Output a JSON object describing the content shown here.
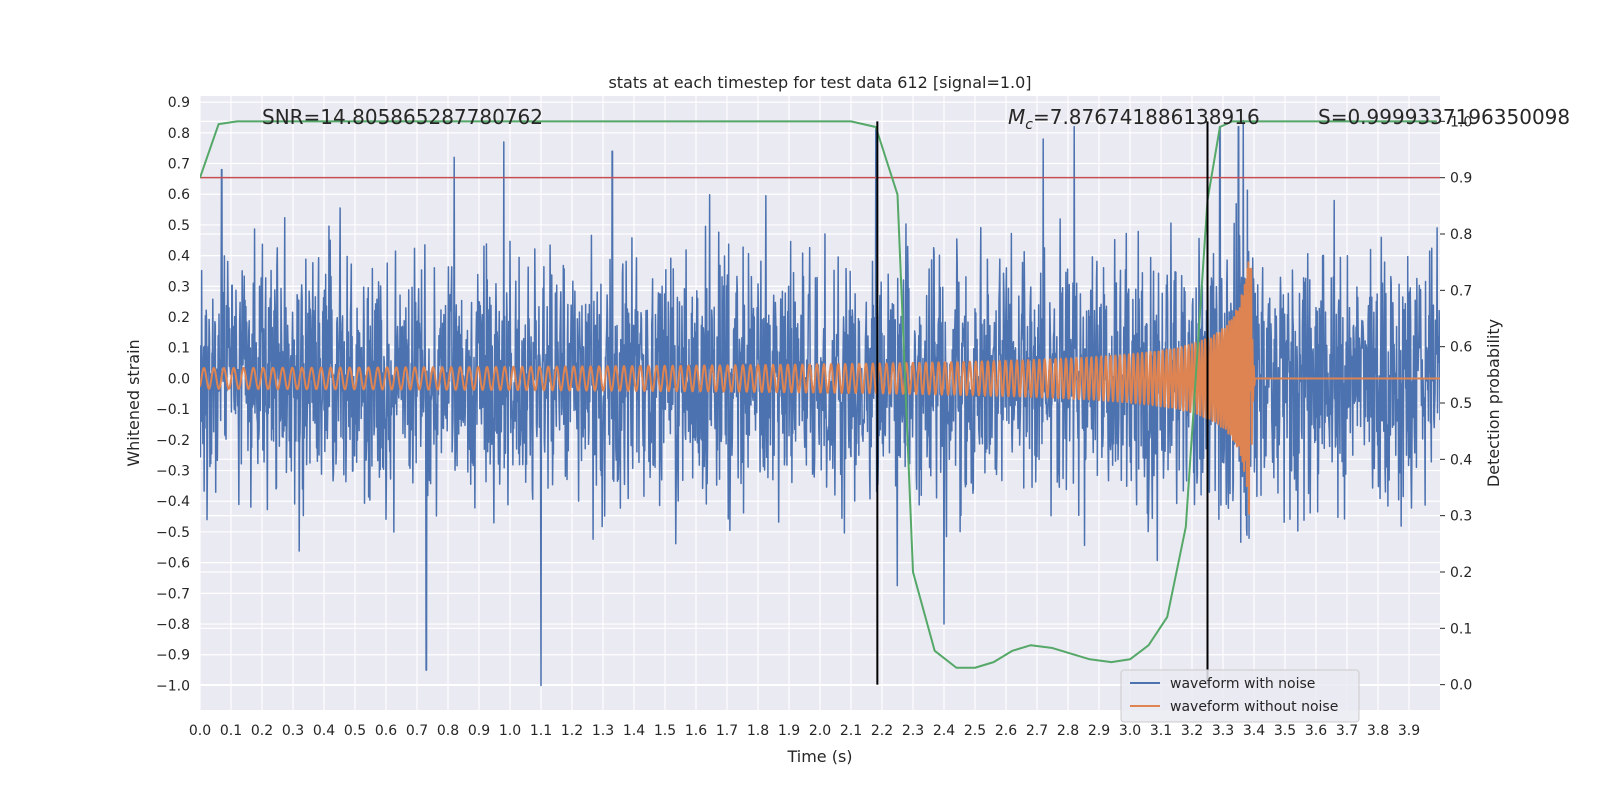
{
  "chart_data": {
    "type": "line",
    "title": "stats at each timestep for test data 612 [signal=1.0]",
    "xlabel": "Time (s)",
    "ylabel_left": "Whitened strain",
    "ylabel_right": "Detection probability",
    "xlim": [
      0.0,
      4.0
    ],
    "ylim_left": [
      -1.08,
      0.92
    ],
    "ylim_right": [
      -0.045,
      1.045
    ],
    "x_ticks": [
      0.0,
      0.1,
      0.2,
      0.3,
      0.4,
      0.5,
      0.6,
      0.7,
      0.8,
      0.9,
      1.0,
      1.1,
      1.2,
      1.3,
      1.4,
      1.5,
      1.6,
      1.7,
      1.8,
      1.9,
      2.0,
      2.1,
      2.2,
      2.3,
      2.4,
      2.5,
      2.6,
      2.7,
      2.8,
      2.9,
      3.0,
      3.1,
      3.2,
      3.3,
      3.4,
      3.5,
      3.6,
      3.7,
      3.8,
      3.9
    ],
    "x_tick_labels": [
      "0.0",
      "0.1",
      "0.2",
      "0.3",
      "0.4",
      "0.5",
      "0.6",
      "0.7",
      "0.8",
      "0.9",
      "1.0",
      "1.1",
      "1.2",
      "1.3",
      "1.4",
      "1.5",
      "1.6",
      "1.7",
      "1.8",
      "1.9",
      "2.0",
      "2.1",
      "2.2",
      "2.3",
      "2.4",
      "2.5",
      "2.6",
      "2.7",
      "2.8",
      "2.9",
      "3.0",
      "3.1",
      "3.2",
      "3.3",
      "3.4",
      "3.5",
      "3.6",
      "3.7",
      "3.8",
      "3.9"
    ],
    "y_left_ticks": [
      0.9,
      0.8,
      0.7,
      0.6,
      0.5,
      0.4,
      0.3,
      0.2,
      0.1,
      0.0,
      -0.1,
      -0.2,
      -0.3,
      -0.4,
      -0.5,
      -0.6,
      -0.7,
      -0.8,
      -0.9,
      -1.0
    ],
    "y_left_tick_labels": [
      "0.9",
      "0.8",
      "0.7",
      "0.6",
      "0.5",
      "0.4",
      "0.3",
      "0.2",
      "0.1",
      "0.0",
      "−0.1",
      "−0.2",
      "−0.3",
      "−0.4",
      "−0.5",
      "−0.6",
      "−0.7",
      "−0.8",
      "−0.9",
      "−1.0"
    ],
    "y_right_ticks": [
      0.0,
      0.1,
      0.2,
      0.3,
      0.4,
      0.5,
      0.6,
      0.7,
      0.8,
      0.9,
      1.0
    ],
    "y_right_tick_labels": [
      "0.0",
      "0.1",
      "0.2",
      "0.3",
      "0.4",
      "0.5",
      "0.6",
      "0.7",
      "0.8",
      "0.9",
      "1.0"
    ],
    "grid": true,
    "legend_position": "lower-right",
    "series": [
      {
        "name": "waveform with noise",
        "axis": "left",
        "color": "#4c72b0",
        "x_range": [
          0.0,
          4.0
        ],
        "approx_amplitude": 0.6,
        "notable_spikes": [
          [
            0.07,
            0.68
          ],
          [
            0.73,
            -0.95
          ],
          [
            0.82,
            0.72
          ],
          [
            0.98,
            0.77
          ],
          [
            1.1,
            -1.0
          ],
          [
            1.33,
            0.74
          ],
          [
            2.18,
            0.82
          ],
          [
            2.4,
            -0.8
          ],
          [
            2.72,
            0.78
          ],
          [
            2.82,
            0.82
          ],
          [
            3.29,
            0.82
          ],
          [
            3.35,
            0.82
          ]
        ]
      },
      {
        "name": "waveform without noise",
        "axis": "left",
        "color": "#dd8452",
        "type": "chirp",
        "start_amplitude": 0.03,
        "peak_amplitude": 0.46,
        "merger_time": 3.39,
        "after_merger_value": 0.0
      },
      {
        "name": "",
        "axis": "right",
        "color": "#55a868",
        "x": [
          0.0,
          0.06,
          0.12,
          0.5,
          1.0,
          1.5,
          2.0,
          2.1,
          2.18,
          2.25,
          2.3,
          2.37,
          2.44,
          2.5,
          2.56,
          2.62,
          2.68,
          2.75,
          2.81,
          2.87,
          2.94,
          3.0,
          3.06,
          3.12,
          3.18,
          3.25,
          3.29,
          3.33,
          3.4,
          3.5,
          3.7,
          3.99
        ],
        "y": [
          0.9,
          0.995,
          1.0,
          1.0,
          1.0,
          1.0,
          1.0,
          1.0,
          0.99,
          0.87,
          0.2,
          0.06,
          0.03,
          0.03,
          0.04,
          0.06,
          0.07,
          0.065,
          0.055,
          0.045,
          0.04,
          0.045,
          0.07,
          0.12,
          0.28,
          0.86,
          0.99,
          1.0,
          1.0,
          1.0,
          1.0,
          1.0
        ]
      }
    ],
    "threshold_line": {
      "axis": "right",
      "y": 0.9,
      "color": "#c44e52"
    },
    "vertical_lines": [
      {
        "x": 2.185
      },
      {
        "x": 3.25
      }
    ],
    "annotations": [
      {
        "text": "SNR=14.805865287780762"
      },
      {
        "text_prefix": "M",
        "text_sub": "c",
        "text_suffix": "=7.876741886138916"
      },
      {
        "text": "S=0.9999337196350098"
      }
    ],
    "legend": [
      "waveform with noise",
      "waveform without noise"
    ]
  }
}
